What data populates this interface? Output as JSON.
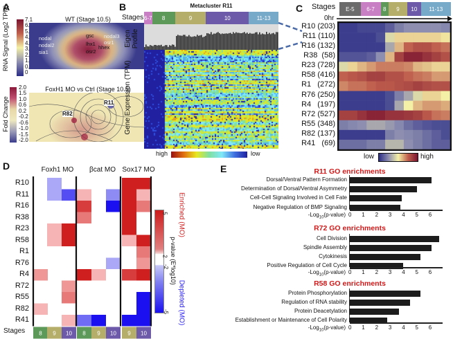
{
  "panels": {
    "a": "A",
    "b": "B",
    "c": "C",
    "d": "D",
    "e": "E"
  },
  "panel_a": {
    "wt_title": "WT (Stage 10.5)",
    "wt_colorbar_label": "RNA Signal (Log2 TPM)",
    "wt_ticks": [
      "7.1",
      "6.3",
      "5.5",
      "4.7",
      "4.0",
      "3.2",
      "2.4",
      "1.6",
      "0.8",
      "0"
    ],
    "wt_gene_labels": [
      "nodal",
      "nodal2",
      "sia1",
      "gsc",
      "lhx1",
      "osr2",
      "hhex",
      "nodal3",
      "osr1"
    ],
    "fc_title": "FoxH1 MO vs Ctrl (Stage 10.5)",
    "fc_colorbar_label": "Fold Change",
    "fc_ticks": [
      "2.0",
      "1.5",
      "1.0",
      "0.6",
      "0.2",
      "-0.2",
      "-0.6",
      "-1.0",
      "-1.5",
      "-2.0"
    ],
    "fc_region_labels": [
      "R82",
      "R11"
    ]
  },
  "panel_b": {
    "title": "Metacluster R11",
    "stages_label": "Stages",
    "stages": [
      {
        "label": "6-7",
        "color": "#c87fc4"
      },
      {
        "label": "8",
        "color": "#5d9a5a"
      },
      {
        "label": "9",
        "color": "#b5ad6a"
      },
      {
        "label": "10",
        "color": "#6d5aa8"
      },
      {
        "label": "11-13",
        "color": "#77a9c8"
      }
    ],
    "eigen_label": "Eigen Profile",
    "expr_label": "Gene Expression (TPM)",
    "colorbar_high": "high",
    "colorbar_low": "low"
  },
  "chart_data": [
    {
      "type": "heatmap",
      "panel": "C",
      "stages_label": "Stages",
      "time_label": "0hr",
      "stages": [
        {
          "label": "E-5",
          "color": "#6b6b6b"
        },
        {
          "label": "6-7",
          "color": "#c87fc4"
        },
        {
          "label": "8",
          "color": "#5d9a5a"
        },
        {
          "label": "9",
          "color": "#b5ad6a"
        },
        {
          "label": "10",
          "color": "#6d5aa8"
        },
        {
          "label": "11-13",
          "color": "#77a9c8"
        }
      ],
      "rows": [
        "R10 (203)",
        "R11 (110)",
        "R16 (132)",
        "R38  (58)",
        "R23 (728)",
        "R58 (416)",
        "R1   (272)",
        "R76 (250)",
        "R4   (197)",
        "R72 (527)",
        "R55 (348)",
        "R82 (137)",
        "R41   (69)"
      ],
      "values": [
        [
          0.05,
          0.05,
          0.08,
          0.08,
          0.08,
          0.15,
          0.25,
          0.3,
          0.3,
          0.3,
          0.3,
          0.28
        ],
        [
          0.05,
          0.05,
          0.05,
          0.05,
          0.1,
          0.45,
          0.55,
          0.55,
          0.55,
          0.55,
          0.55,
          0.52
        ],
        [
          0.05,
          0.05,
          0.05,
          0.05,
          0.05,
          0.35,
          0.6,
          0.75,
          0.8,
          0.8,
          0.75,
          0.72
        ],
        [
          0.12,
          0.12,
          0.12,
          0.15,
          0.3,
          0.6,
          0.85,
          0.95,
          0.95,
          0.9,
          0.85,
          0.8
        ],
        [
          0.45,
          0.55,
          0.6,
          0.65,
          0.7,
          0.7,
          0.7,
          0.68,
          0.6,
          0.58,
          0.55,
          0.55
        ],
        [
          0.75,
          0.78,
          0.8,
          0.85,
          0.85,
          0.8,
          0.8,
          0.75,
          0.72,
          0.7,
          0.65,
          0.65
        ],
        [
          0.68,
          0.72,
          0.72,
          0.75,
          0.78,
          0.78,
          0.8,
          0.82,
          0.85,
          0.82,
          0.8,
          0.8
        ],
        [
          0.05,
          0.05,
          0.05,
          0.05,
          0.05,
          0.1,
          0.25,
          0.35,
          0.45,
          0.55,
          0.55,
          0.5
        ],
        [
          0.05,
          0.05,
          0.05,
          0.05,
          0.05,
          0.1,
          0.35,
          0.5,
          0.6,
          0.65,
          0.65,
          0.62
        ],
        [
          0.85,
          0.85,
          0.9,
          0.95,
          0.95,
          0.9,
          0.9,
          0.88,
          0.85,
          0.78,
          0.72,
          0.7
        ],
        [
          0.25,
          0.28,
          0.3,
          0.35,
          0.35,
          0.32,
          0.28,
          0.2,
          0.15,
          0.12,
          0.1,
          0.1
        ],
        [
          0.05,
          0.05,
          0.05,
          0.05,
          0.05,
          0.25,
          0.3,
          0.28,
          0.25,
          0.2,
          0.15,
          0.1
        ],
        [
          0.2,
          0.2,
          0.2,
          0.25,
          0.25,
          0.38,
          0.38,
          0.3,
          0.25,
          0.2,
          0.15,
          0.15
        ]
      ],
      "colorbar_low": "low",
      "colorbar_high": "high"
    },
    {
      "type": "heatmap",
      "panel": "D",
      "groups": [
        "Foxh1 MO",
        "βcat MO",
        "Sox17 MO"
      ],
      "stages_label": "Stages",
      "columns": [
        {
          "group": 0,
          "stage": "8"
        },
        {
          "group": 0,
          "stage": "9"
        },
        {
          "group": 0,
          "stage": "10"
        },
        {
          "group": 1,
          "stage": "8"
        },
        {
          "group": 1,
          "stage": "9"
        },
        {
          "group": 1,
          "stage": "10"
        },
        {
          "group": 2,
          "stage": "9"
        },
        {
          "group": 2,
          "stage": "10"
        }
      ],
      "stage_colors": {
        "8": "#5d9a5a",
        "9": "#b5ad6a",
        "10": "#6d5aa8"
      },
      "rows": [
        "R10",
        "R11",
        "R16",
        "R38",
        "R23",
        "R58",
        "R1",
        "R76",
        "R4",
        "R72",
        "R55",
        "R82",
        "R41"
      ],
      "values": [
        [
          0,
          -2.5,
          0,
          0,
          0,
          0,
          5,
          5
        ],
        [
          0,
          -2.5,
          -4,
          2.5,
          0,
          -3,
          5,
          2.5
        ],
        [
          0,
          0,
          0,
          4.5,
          0,
          -5,
          5,
          3.5
        ],
        [
          0,
          0,
          0,
          3.5,
          0,
          0,
          5,
          0
        ],
        [
          0,
          2.5,
          5,
          0,
          0,
          0,
          5,
          0
        ],
        [
          0,
          2.5,
          5,
          0,
          0,
          0,
          2.5,
          5
        ],
        [
          0,
          0,
          0,
          0,
          0,
          0,
          0,
          3.5
        ],
        [
          0,
          0,
          0,
          0,
          0,
          -2.5,
          0,
          3
        ],
        [
          3,
          0,
          0,
          5,
          2.5,
          0,
          4.5,
          5
        ],
        [
          0,
          0,
          3,
          0,
          0,
          0,
          0,
          0
        ],
        [
          0,
          0,
          3.5,
          0,
          0,
          0,
          0,
          -5
        ],
        [
          2.5,
          0,
          0,
          0,
          0,
          0,
          0,
          -5
        ],
        [
          0,
          0,
          2.5,
          -3.5,
          -5,
          0,
          -5,
          -5
        ]
      ],
      "colorbar": {
        "ticks": [
          "5",
          "2",
          "-2",
          "-5"
        ],
        "label": "p-value (E*log10)",
        "enriched_label": "Enriched (MO)",
        "depleted_label": "Depleted (MO)",
        "enriched_color": "#d01f1f",
        "depleted_color": "#1a10f0"
      }
    },
    {
      "type": "bar",
      "orientation": "horizontal",
      "panel": "E",
      "xlabel": "-Log10(p-value)",
      "xticks": [
        "0",
        "1",
        "2",
        "3",
        "4",
        "5",
        "6"
      ],
      "xlim": [
        0,
        6.7
      ],
      "charts": [
        {
          "title": "R11 GO enrichments",
          "categories": [
            "Dorsal/Ventral Pattern Formation",
            "Determination of Dorsal/Ventral Asymmetry",
            "Cell-Cell Signaling Involved in Cell Fate",
            "Negative Regulation of BMP Signaling"
          ],
          "values": [
            6.1,
            5.0,
            3.9,
            3.8
          ]
        },
        {
          "title": "R72 GO enrichments",
          "categories": [
            "Cell Division",
            "Spindle Assembly",
            "Cytokinesis",
            "Positive Regulation of Cell Cycle"
          ],
          "values": [
            6.7,
            6.1,
            5.3,
            4.0
          ]
        },
        {
          "title": "R58 GO enrichments",
          "categories": [
            "Protein Phosphorylation",
            "Regulation of RNA stability",
            "Protein Deacetylation",
            "Establishment or Maintenance of Cell Polarity"
          ],
          "values": [
            5.3,
            4.5,
            3.7,
            2.8
          ]
        }
      ]
    }
  ]
}
